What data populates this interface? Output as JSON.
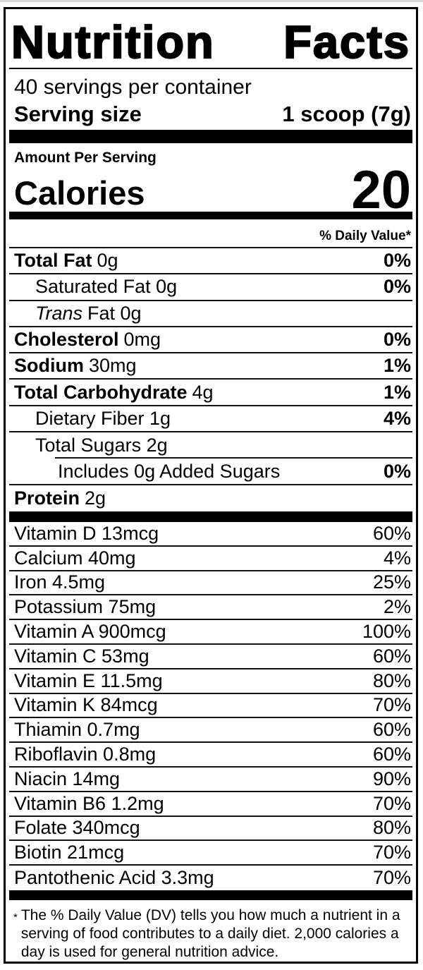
{
  "label": {
    "title_left": "Nutrition",
    "title_right": "Facts",
    "servings_per_container": "40 servings per container",
    "serving_size_label": "Serving size",
    "serving_size_value": "1 scoop (7g)",
    "amount_per_serving": "Amount Per Serving",
    "calories_label": "Calories",
    "calories_value": "20",
    "daily_value_header": "% Daily Value*",
    "macros": [
      {
        "italic": "",
        "bold": "Total Fat",
        "rest": "0g",
        "dv": "0%",
        "indent": 0,
        "sep": "full"
      },
      {
        "italic": "",
        "bold": "",
        "rest": "Saturated Fat 0g",
        "dv": "0%",
        "indent": 1,
        "sep": "full"
      },
      {
        "italic": "Trans",
        "bold": "",
        "rest": "Fat 0g",
        "dv": "",
        "indent": 1,
        "sep": "full"
      },
      {
        "italic": "",
        "bold": "Cholesterol",
        "rest": "0mg",
        "dv": "0%",
        "indent": 0,
        "sep": "full"
      },
      {
        "italic": "",
        "bold": "Sodium",
        "rest": "30mg",
        "dv": "1%",
        "indent": 0,
        "sep": "full"
      },
      {
        "italic": "",
        "bold": "Total Carbohydrate",
        "rest": "4g",
        "dv": "1%",
        "indent": 0,
        "sep": "full"
      },
      {
        "italic": "",
        "bold": "",
        "rest": "Dietary Fiber 1g",
        "dv": "4%",
        "indent": 1,
        "sep": "full"
      },
      {
        "italic": "",
        "bold": "",
        "rest": "Total Sugars 2g",
        "dv": "",
        "indent": 1,
        "sep": "indent"
      },
      {
        "italic": "",
        "bold": "",
        "rest": "Includes 0g Added Sugars",
        "dv": "0%",
        "indent": 2,
        "sep": "full"
      },
      {
        "italic": "",
        "bold": "Protein",
        "rest": "2g",
        "dv": "",
        "indent": 0,
        "sep": "none"
      }
    ],
    "vitamins": [
      {
        "text": "Vitamin D 13mcg",
        "dv": "60%"
      },
      {
        "text": "Calcium 40mg",
        "dv": "4%"
      },
      {
        "text": "Iron 4.5mg",
        "dv": "25%"
      },
      {
        "text": "Potassium 75mg",
        "dv": "2%"
      },
      {
        "text": "Vitamin A 900mcg",
        "dv": "100%"
      },
      {
        "text": "Vitamin C 53mg",
        "dv": "60%"
      },
      {
        "text": "Vitamin E 11.5mg",
        "dv": "80%"
      },
      {
        "text": "Vitamin K 84mcg",
        "dv": "70%"
      },
      {
        "text": "Thiamin 0.7mg",
        "dv": "60%"
      },
      {
        "text": "Riboflavin 0.8mg",
        "dv": "60%"
      },
      {
        "text": "Niacin 14mg",
        "dv": "90%"
      },
      {
        "text": "Vitamin B6 1.2mg",
        "dv": "70%"
      },
      {
        "text": "Folate 340mcg",
        "dv": "80%"
      },
      {
        "text": "Biotin 21mcg",
        "dv": "70%"
      },
      {
        "text": "Pantothenic Acid 3.3mg",
        "dv": "70%"
      }
    ],
    "footnote_asterisk": "*",
    "footnote_lines": [
      "The % Daily Value (DV) tells you how much a nutrient in a",
      "serving of food contributes to a daily diet. 2,000 calories a",
      "day is used for general nutrition advice."
    ],
    "colors": {
      "ink": "#000000",
      "hairline": "#111111",
      "page": "#ffffff"
    }
  }
}
